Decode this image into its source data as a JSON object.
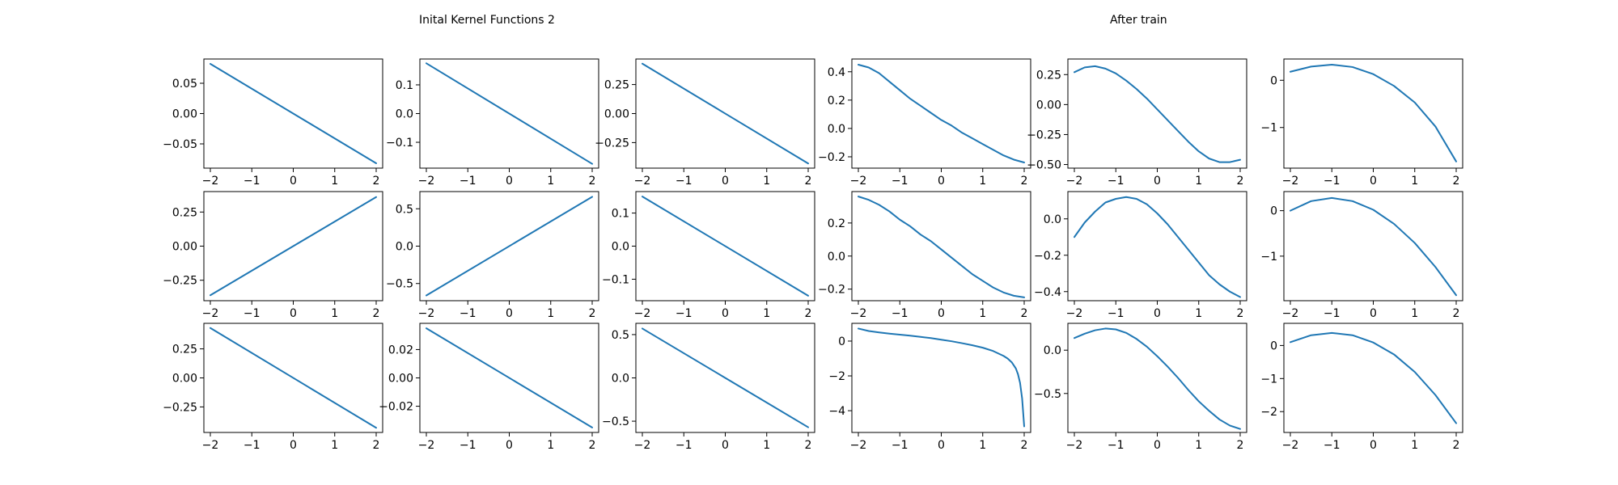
{
  "titles": {
    "left": "Inital Kernel Functions 2",
    "right": "After train"
  },
  "style": {
    "line_color": "#1f77b4",
    "axes_color": "#000000",
    "background": "#ffffff"
  },
  "chart_data": [
    {
      "type": "line",
      "row": 0,
      "col": 0,
      "xlim": [
        -2,
        2
      ],
      "xticks": [
        -2,
        -1,
        0,
        1,
        2
      ],
      "xtick_labels": [
        "−2",
        "−1",
        "0",
        "1",
        "2"
      ],
      "ylim": [
        -0.09,
        0.09
      ],
      "yticks": [
        -0.05,
        0.0,
        0.05
      ],
      "ytick_labels": [
        "−0.05",
        "0.00",
        "0.05"
      ],
      "x": [
        -2,
        2
      ],
      "y": [
        0.082,
        -0.082
      ]
    },
    {
      "type": "line",
      "row": 0,
      "col": 1,
      "xlim": [
        -2,
        2
      ],
      "xticks": [
        -2,
        -1,
        0,
        1,
        2
      ],
      "xtick_labels": [
        "−2",
        "−1",
        "0",
        "1",
        "2"
      ],
      "ylim": [
        -0.19,
        0.19
      ],
      "yticks": [
        -0.1,
        0.0,
        0.1
      ],
      "ytick_labels": [
        "−0.1",
        "0.0",
        "0.1"
      ],
      "x": [
        -2,
        2
      ],
      "y": [
        0.175,
        -0.175
      ]
    },
    {
      "type": "line",
      "row": 0,
      "col": 2,
      "xlim": [
        -2,
        2
      ],
      "xticks": [
        -2,
        -1,
        0,
        1,
        2
      ],
      "xtick_labels": [
        "−2",
        "−1",
        "0",
        "1",
        "2"
      ],
      "ylim": [
        -0.47,
        0.47
      ],
      "yticks": [
        -0.25,
        0.0,
        0.25
      ],
      "ytick_labels": [
        "−0.25",
        "0.00",
        "0.25"
      ],
      "x": [
        -2,
        2
      ],
      "y": [
        0.43,
        -0.43
      ]
    },
    {
      "type": "line",
      "row": 0,
      "col": 3,
      "xlim": [
        -2,
        2
      ],
      "xticks": [
        -2,
        -1,
        0,
        1,
        2
      ],
      "xtick_labels": [
        "−2",
        "−1",
        "0",
        "1",
        "2"
      ],
      "ylim": [
        -0.28,
        0.49
      ],
      "yticks": [
        -0.2,
        0.0,
        0.2,
        0.4
      ],
      "ytick_labels": [
        "−0.2",
        "0.0",
        "0.2",
        "0.4"
      ],
      "x": [
        -2.0,
        -1.75,
        -1.5,
        -1.25,
        -1.0,
        -0.75,
        -0.5,
        -0.25,
        0.0,
        0.25,
        0.5,
        0.75,
        1.0,
        1.25,
        1.5,
        1.75,
        2.0
      ],
      "y": [
        0.45,
        0.43,
        0.39,
        0.33,
        0.27,
        0.21,
        0.16,
        0.11,
        0.06,
        0.02,
        -0.03,
        -0.07,
        -0.11,
        -0.15,
        -0.19,
        -0.22,
        -0.24
      ]
    },
    {
      "type": "line",
      "row": 0,
      "col": 4,
      "xlim": [
        -2,
        2
      ],
      "xticks": [
        -2,
        -1,
        0,
        1,
        2
      ],
      "xtick_labels": [
        "−2",
        "−1",
        "0",
        "1",
        "2"
      ],
      "ylim": [
        -0.53,
        0.38
      ],
      "yticks": [
        -0.5,
        -0.25,
        0.0,
        0.25
      ],
      "ytick_labels": [
        "−0.50",
        "−0.25",
        "0.00",
        "0.25"
      ],
      "x": [
        -2.0,
        -1.75,
        -1.5,
        -1.25,
        -1.0,
        -0.75,
        -0.5,
        -0.25,
        0.0,
        0.25,
        0.5,
        0.75,
        1.0,
        1.25,
        1.5,
        1.75,
        2.0
      ],
      "y": [
        0.27,
        0.31,
        0.32,
        0.3,
        0.26,
        0.2,
        0.13,
        0.05,
        -0.04,
        -0.13,
        -0.22,
        -0.31,
        -0.39,
        -0.45,
        -0.48,
        -0.48,
        -0.46
      ]
    },
    {
      "type": "line",
      "row": 0,
      "col": 5,
      "xlim": [
        -2,
        2
      ],
      "xticks": [
        -2,
        -1,
        0,
        1,
        2
      ],
      "xtick_labels": [
        "−2",
        "−1",
        "0",
        "1",
        "2"
      ],
      "ylim": [
        -1.86,
        0.45
      ],
      "yticks": [
        -1,
        0
      ],
      "ytick_labels": [
        "−1",
        "0"
      ],
      "x": [
        -2.0,
        -1.5,
        -1.0,
        -0.5,
        0.0,
        0.5,
        1.0,
        1.5,
        2.0
      ],
      "y": [
        0.18,
        0.29,
        0.33,
        0.28,
        0.13,
        -0.12,
        -0.47,
        -0.98,
        -1.72
      ]
    },
    {
      "type": "line",
      "row": 1,
      "col": 0,
      "xlim": [
        -2,
        2
      ],
      "xticks": [
        -2,
        -1,
        0,
        1,
        2
      ],
      "xtick_labels": [
        "−2",
        "−1",
        "0",
        "1",
        "2"
      ],
      "ylim": [
        -0.4,
        0.4
      ],
      "yticks": [
        -0.25,
        0.0,
        0.25
      ],
      "ytick_labels": [
        "−0.25",
        "0.00",
        "0.25"
      ],
      "x": [
        -2,
        2
      ],
      "y": [
        -0.36,
        0.36
      ]
    },
    {
      "type": "line",
      "row": 1,
      "col": 1,
      "xlim": [
        -2,
        2
      ],
      "xticks": [
        -2,
        -1,
        0,
        1,
        2
      ],
      "xtick_labels": [
        "−2",
        "−1",
        "0",
        "1",
        "2"
      ],
      "ylim": [
        -0.73,
        0.73
      ],
      "yticks": [
        -0.5,
        0.0,
        0.5
      ],
      "ytick_labels": [
        "−0.5",
        "0.0",
        "0.5"
      ],
      "x": [
        -2,
        2
      ],
      "y": [
        -0.66,
        0.66
      ]
    },
    {
      "type": "line",
      "row": 1,
      "col": 2,
      "xlim": [
        -2,
        2
      ],
      "xticks": [
        -2,
        -1,
        0,
        1,
        2
      ],
      "xtick_labels": [
        "−2",
        "−1",
        "0",
        "1",
        "2"
      ],
      "ylim": [
        -0.165,
        0.165
      ],
      "yticks": [
        -0.1,
        0.0,
        0.1
      ],
      "ytick_labels": [
        "−0.1",
        "0.0",
        "0.1"
      ],
      "x": [
        -2,
        2
      ],
      "y": [
        0.15,
        -0.15
      ]
    },
    {
      "type": "line",
      "row": 1,
      "col": 3,
      "xlim": [
        -2,
        2
      ],
      "xticks": [
        -2,
        -1,
        0,
        1,
        2
      ],
      "xtick_labels": [
        "−2",
        "−1",
        "0",
        "1",
        "2"
      ],
      "ylim": [
        -0.27,
        0.39
      ],
      "yticks": [
        -0.2,
        0.0,
        0.2
      ],
      "ytick_labels": [
        "−0.2",
        "0.0",
        "0.2"
      ],
      "x": [
        -2.0,
        -1.75,
        -1.5,
        -1.25,
        -1.0,
        -0.75,
        -0.5,
        -0.25,
        0.0,
        0.25,
        0.5,
        0.75,
        1.0,
        1.25,
        1.5,
        1.75,
        2.0
      ],
      "y": [
        0.36,
        0.34,
        0.31,
        0.27,
        0.22,
        0.18,
        0.13,
        0.09,
        0.04,
        -0.01,
        -0.06,
        -0.11,
        -0.15,
        -0.19,
        -0.22,
        -0.24,
        -0.25
      ]
    },
    {
      "type": "line",
      "row": 1,
      "col": 4,
      "xlim": [
        -2,
        2
      ],
      "xticks": [
        -2,
        -1,
        0,
        1,
        2
      ],
      "xtick_labels": [
        "−2",
        "−1",
        "0",
        "1",
        "2"
      ],
      "ylim": [
        -0.45,
        0.15
      ],
      "yticks": [
        -0.4,
        -0.2,
        0.0
      ],
      "ytick_labels": [
        "−0.4",
        "−0.2",
        "0.0"
      ],
      "x": [
        -2.0,
        -1.75,
        -1.5,
        -1.25,
        -1.0,
        -0.75,
        -0.5,
        -0.25,
        0.0,
        0.25,
        0.5,
        0.75,
        1.0,
        1.25,
        1.5,
        1.75,
        2.0
      ],
      "y": [
        -0.1,
        -0.02,
        0.04,
        0.09,
        0.11,
        0.12,
        0.11,
        0.08,
        0.03,
        -0.03,
        -0.1,
        -0.17,
        -0.24,
        -0.31,
        -0.36,
        -0.4,
        -0.43
      ]
    },
    {
      "type": "line",
      "row": 1,
      "col": 5,
      "xlim": [
        -2,
        2
      ],
      "xticks": [
        -2,
        -1,
        0,
        1,
        2
      ],
      "xtick_labels": [
        "−2",
        "−1",
        "0",
        "1",
        "2"
      ],
      "ylim": [
        -1.98,
        0.42
      ],
      "yticks": [
        -1,
        0
      ],
      "ytick_labels": [
        "−1",
        "0"
      ],
      "x": [
        -2.0,
        -1.5,
        -1.0,
        -0.5,
        0.0,
        0.5,
        1.0,
        1.5,
        2.0
      ],
      "y": [
        0.0,
        0.21,
        0.28,
        0.21,
        0.02,
        -0.29,
        -0.71,
        -1.24,
        -1.86
      ]
    },
    {
      "type": "line",
      "row": 2,
      "col": 0,
      "xlim": [
        -2,
        2
      ],
      "xticks": [
        -2,
        -1,
        0,
        1,
        2
      ],
      "xtick_labels": [
        "−2",
        "−1",
        "0",
        "1",
        "2"
      ],
      "ylim": [
        -0.47,
        0.47
      ],
      "yticks": [
        -0.25,
        0.0,
        0.25
      ],
      "ytick_labels": [
        "−0.25",
        "0.00",
        "0.25"
      ],
      "x": [
        -2,
        2
      ],
      "y": [
        0.43,
        -0.43
      ]
    },
    {
      "type": "line",
      "row": 2,
      "col": 1,
      "xlim": [
        -2,
        2
      ],
      "xticks": [
        -2,
        -1,
        0,
        1,
        2
      ],
      "xtick_labels": [
        "−2",
        "−1",
        "0",
        "1",
        "2"
      ],
      "ylim": [
        -0.0385,
        0.0385
      ],
      "yticks": [
        -0.02,
        0.0,
        0.02
      ],
      "ytick_labels": [
        "−0.02",
        "0.00",
        "0.02"
      ],
      "x": [
        -2,
        2
      ],
      "y": [
        0.035,
        -0.035
      ]
    },
    {
      "type": "line",
      "row": 2,
      "col": 2,
      "xlim": [
        -2,
        2
      ],
      "xticks": [
        -2,
        -1,
        0,
        1,
        2
      ],
      "xtick_labels": [
        "−2",
        "−1",
        "0",
        "1",
        "2"
      ],
      "ylim": [
        -0.63,
        0.63
      ],
      "yticks": [
        -0.5,
        0.0,
        0.5
      ],
      "ytick_labels": [
        "−0.5",
        "0.0",
        "0.5"
      ],
      "x": [
        -2,
        2
      ],
      "y": [
        0.57,
        -0.57
      ]
    },
    {
      "type": "line",
      "row": 2,
      "col": 3,
      "xlim": [
        -2,
        2
      ],
      "xticks": [
        -2,
        -1,
        0,
        1,
        2
      ],
      "xtick_labels": [
        "−2",
        "−1",
        "0",
        "1",
        "2"
      ],
      "ylim": [
        -5.25,
        1.02
      ],
      "yticks": [
        -4,
        -2,
        0
      ],
      "ytick_labels": [
        "−4",
        "−2",
        "0"
      ],
      "x": [
        -2.0,
        -1.75,
        -1.5,
        -1.25,
        -1.0,
        -0.75,
        -0.5,
        -0.25,
        0.0,
        0.25,
        0.5,
        0.75,
        1.0,
        1.25,
        1.5,
        1.6,
        1.7,
        1.8,
        1.85,
        1.9,
        1.95,
        2.0
      ],
      "y": [
        0.72,
        0.58,
        0.5,
        0.43,
        0.37,
        0.31,
        0.24,
        0.17,
        0.08,
        -0.01,
        -0.12,
        -0.24,
        -0.38,
        -0.57,
        -0.85,
        -1.0,
        -1.22,
        -1.58,
        -1.9,
        -2.4,
        -3.3,
        -4.9
      ]
    },
    {
      "type": "line",
      "row": 2,
      "col": 4,
      "xlim": [
        -2,
        2
      ],
      "xticks": [
        -2,
        -1,
        0,
        1,
        2
      ],
      "xtick_labels": [
        "−2",
        "−1",
        "0",
        "1",
        "2"
      ],
      "ylim": [
        -0.95,
        0.31
      ],
      "yticks": [
        -0.5,
        0.0
      ],
      "ytick_labels": [
        "−0.5",
        "0.0"
      ],
      "x": [
        -2.0,
        -1.75,
        -1.5,
        -1.25,
        -1.0,
        -0.75,
        -0.5,
        -0.25,
        0.0,
        0.25,
        0.5,
        0.75,
        1.0,
        1.25,
        1.5,
        1.75,
        2.0
      ],
      "y": [
        0.14,
        0.19,
        0.23,
        0.25,
        0.24,
        0.2,
        0.13,
        0.04,
        -0.07,
        -0.19,
        -0.32,
        -0.46,
        -0.59,
        -0.7,
        -0.8,
        -0.87,
        -0.91
      ]
    },
    {
      "type": "line",
      "row": 2,
      "col": 5,
      "xlim": [
        -2,
        2
      ],
      "xticks": [
        -2,
        -1,
        0,
        1,
        2
      ],
      "xtick_labels": [
        "−2",
        "−1",
        "0",
        "1",
        "2"
      ],
      "ylim": [
        -2.63,
        0.67
      ],
      "yticks": [
        -2,
        -1,
        0
      ],
      "ytick_labels": [
        "−2",
        "−1",
        "0"
      ],
      "x": [
        -2.0,
        -1.5,
        -1.0,
        -0.5,
        0.0,
        0.5,
        1.0,
        1.5,
        2.0
      ],
      "y": [
        0.1,
        0.31,
        0.38,
        0.31,
        0.09,
        -0.27,
        -0.8,
        -1.5,
        -2.35
      ]
    }
  ]
}
